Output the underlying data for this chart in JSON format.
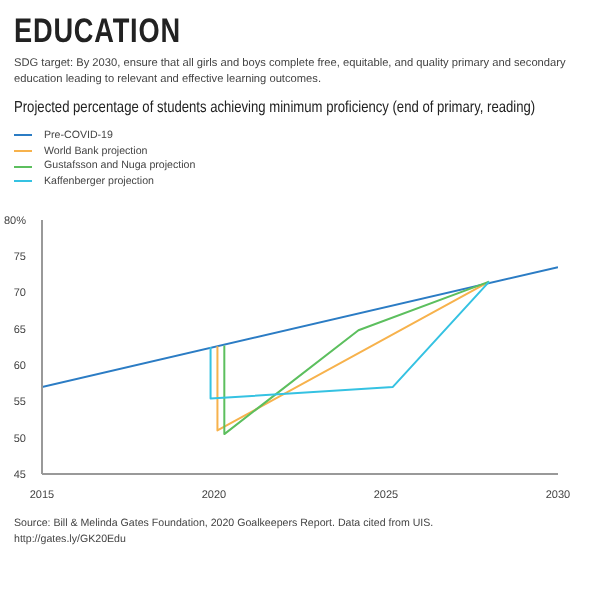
{
  "chart_data": {
    "type": "line",
    "title": "EDUCATION",
    "subtitle": "SDG target: By 2030, ensure that all girls and boys complete free, equitable, and quality primary and secondary education leading to relevant and effective learning outcomes.",
    "legend": "top left",
    "marker": "none",
    "xlim": [
      2015,
      2030
    ],
    "xticks": [
      2015,
      2020,
      2025,
      2030
    ],
    "ylim": [
      45,
      80
    ],
    "yticks": [
      45,
      50,
      55,
      60,
      65,
      70,
      75,
      {
        "value": 80,
        "label": "80%"
      }
    ],
    "series": [
      {
        "name": "Pre-COVID-19",
        "color": "#2b7cc4",
        "x": [
          2015,
          2030
        ],
        "values": [
          57,
          73.5
        ]
      },
      {
        "name": "World Bank projection",
        "color": "#f7b24c",
        "x": [
          2020.1,
          2020.1,
          2028
        ],
        "values": [
          62.6,
          51,
          71.5
        ]
      },
      {
        "name": "Gustafsson and Nuga projection",
        "color": "#5cbf5e",
        "x": [
          2020.3,
          2020.3,
          2024.2,
          2028
        ],
        "values": [
          62.7,
          50.5,
          64.8,
          71.5
        ]
      },
      {
        "name": "Kaffenberger projection",
        "color": "#35c2e2",
        "x": [
          2019.9,
          2019.9,
          2025.2,
          2028
        ],
        "values": [
          62.5,
          55.4,
          57,
          71.5
        ]
      }
    ],
    "annotations": [
      "Projected percentage of students achieving minimum proficiency (end of primary, reading)",
      "Source: Bill & Melinda Gates Foundation, 2020 Goalkeepers Report. Data cited from UIS.",
      "http://gates.ly/GK20Edu"
    ]
  }
}
